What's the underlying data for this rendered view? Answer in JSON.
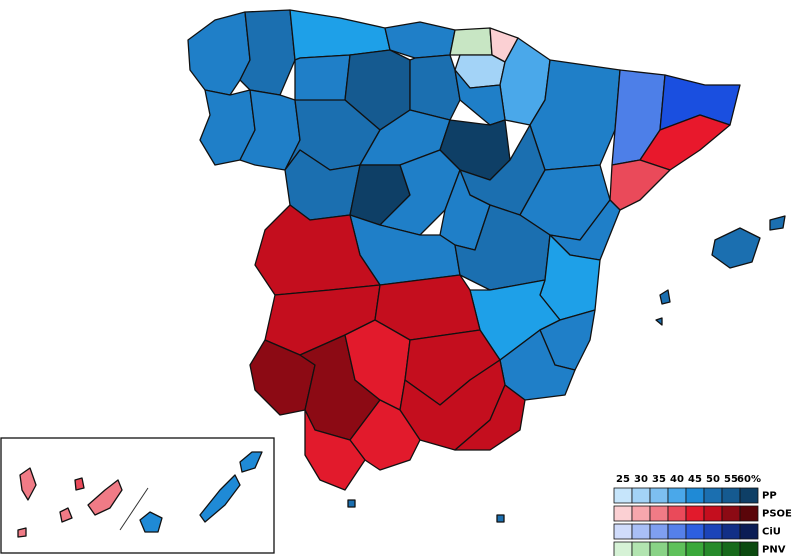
{
  "legend": {
    "ticks": [
      25,
      30,
      35,
      40,
      45,
      50,
      55,
      {
        "value": 60,
        "label": "60%"
      }
    ],
    "parties": [
      {
        "name": "PP",
        "colors": [
          "#c6e5fb",
          "#a3d3f7",
          "#7dbff0",
          "#4aa8ea",
          "#1f8ad6",
          "#1b6fb0",
          "#155a90",
          "#0e3f66"
        ]
      },
      {
        "name": "PSOE",
        "colors": [
          "#fbd0d3",
          "#f7a7ad",
          "#f07b86",
          "#ea4a5a",
          "#e21a2c",
          "#c40e1e",
          "#8c0a14",
          "#5a0509"
        ]
      },
      {
        "name": "CiU",
        "colors": [
          "#d0dcfb",
          "#a9bff6",
          "#7f9ff0",
          "#5580ea",
          "#2d5fe0",
          "#1c44b8",
          "#122f86",
          "#0b1d55"
        ]
      },
      {
        "name": "PNV",
        "colors": [
          "#d6f2d6",
          "#b2e4b0",
          "#89d386",
          "#5fc15b",
          "#3aa83a",
          "#268a2a",
          "#176a1b",
          "#0c4a10"
        ]
      }
    ]
  }
}
